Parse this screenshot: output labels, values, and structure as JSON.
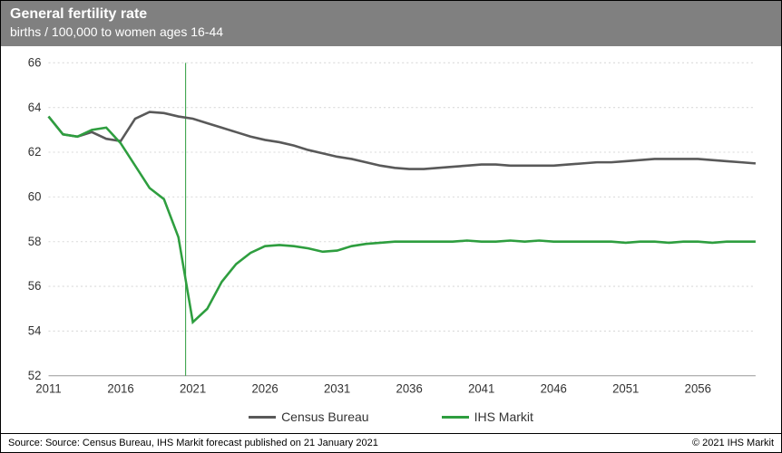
{
  "header": {
    "title": "General fertility rate",
    "subtitle": "births / 100,000 to women ages 16-44"
  },
  "chart": {
    "type": "line",
    "background_color": "#ffffff",
    "grid_color": "#d9d9d9",
    "axis_color": "#999999",
    "tick_fontsize": 13,
    "x": {
      "min": 2011,
      "max": 2060,
      "tick_step": 5,
      "tick_labels": [
        "2011",
        "2016",
        "2021",
        "2026",
        "2031",
        "2036",
        "2041",
        "2046",
        "2051",
        "2056"
      ]
    },
    "y": {
      "min": 52,
      "max": 66,
      "tick_step": 2,
      "tick_labels": [
        "52",
        "54",
        "56",
        "58",
        "60",
        "62",
        "64",
        "66"
      ]
    },
    "vertical_marker": {
      "x": 2020.5,
      "color": "#2e9e3f",
      "width": 1
    },
    "series": [
      {
        "name": "Census Bureau",
        "color": "#595959",
        "line_width": 2.5,
        "points": [
          [
            2011,
            63.6
          ],
          [
            2012,
            62.8
          ],
          [
            2013,
            62.7
          ],
          [
            2014,
            62.9
          ],
          [
            2015,
            62.6
          ],
          [
            2016,
            62.5
          ],
          [
            2017,
            63.5
          ],
          [
            2018,
            63.8
          ],
          [
            2019,
            63.75
          ],
          [
            2020,
            63.6
          ],
          [
            2021,
            63.5
          ],
          [
            2022,
            63.3
          ],
          [
            2023,
            63.1
          ],
          [
            2024,
            62.9
          ],
          [
            2025,
            62.7
          ],
          [
            2026,
            62.55
          ],
          [
            2027,
            62.45
          ],
          [
            2028,
            62.3
          ],
          [
            2029,
            62.1
          ],
          [
            2030,
            61.95
          ],
          [
            2031,
            61.8
          ],
          [
            2032,
            61.7
          ],
          [
            2033,
            61.55
          ],
          [
            2034,
            61.4
          ],
          [
            2035,
            61.3
          ],
          [
            2036,
            61.25
          ],
          [
            2037,
            61.25
          ],
          [
            2038,
            61.3
          ],
          [
            2039,
            61.35
          ],
          [
            2040,
            61.4
          ],
          [
            2041,
            61.45
          ],
          [
            2042,
            61.45
          ],
          [
            2043,
            61.4
          ],
          [
            2044,
            61.4
          ],
          [
            2045,
            61.4
          ],
          [
            2046,
            61.4
          ],
          [
            2047,
            61.45
          ],
          [
            2048,
            61.5
          ],
          [
            2049,
            61.55
          ],
          [
            2050,
            61.55
          ],
          [
            2051,
            61.6
          ],
          [
            2052,
            61.65
          ],
          [
            2053,
            61.7
          ],
          [
            2054,
            61.7
          ],
          [
            2055,
            61.7
          ],
          [
            2056,
            61.7
          ],
          [
            2057,
            61.65
          ],
          [
            2058,
            61.6
          ],
          [
            2059,
            61.55
          ],
          [
            2060,
            61.5
          ]
        ]
      },
      {
        "name": "IHS Markit",
        "color": "#2e9e3f",
        "line_width": 2.5,
        "points": [
          [
            2011,
            63.6
          ],
          [
            2012,
            62.8
          ],
          [
            2013,
            62.7
          ],
          [
            2014,
            63.0
          ],
          [
            2015,
            63.1
          ],
          [
            2016,
            62.4
          ],
          [
            2017,
            61.4
          ],
          [
            2018,
            60.4
          ],
          [
            2019,
            59.9
          ],
          [
            2020,
            58.2
          ],
          [
            2021,
            54.4
          ],
          [
            2022,
            55.0
          ],
          [
            2023,
            56.2
          ],
          [
            2024,
            57.0
          ],
          [
            2025,
            57.5
          ],
          [
            2026,
            57.8
          ],
          [
            2027,
            57.85
          ],
          [
            2028,
            57.8
          ],
          [
            2029,
            57.7
          ],
          [
            2030,
            57.55
          ],
          [
            2031,
            57.6
          ],
          [
            2032,
            57.8
          ],
          [
            2033,
            57.9
          ],
          [
            2034,
            57.95
          ],
          [
            2035,
            58.0
          ],
          [
            2036,
            58.0
          ],
          [
            2037,
            58.0
          ],
          [
            2038,
            58.0
          ],
          [
            2039,
            58.0
          ],
          [
            2040,
            58.05
          ],
          [
            2041,
            58.0
          ],
          [
            2042,
            58.0
          ],
          [
            2043,
            58.05
          ],
          [
            2044,
            58.0
          ],
          [
            2045,
            58.05
          ],
          [
            2046,
            58.0
          ],
          [
            2047,
            58.0
          ],
          [
            2048,
            58.0
          ],
          [
            2049,
            58.0
          ],
          [
            2050,
            58.0
          ],
          [
            2051,
            57.95
          ],
          [
            2052,
            58.0
          ],
          [
            2053,
            58.0
          ],
          [
            2054,
            57.95
          ],
          [
            2055,
            58.0
          ],
          [
            2056,
            58.0
          ],
          [
            2057,
            57.95
          ],
          [
            2058,
            58.0
          ],
          [
            2059,
            58.0
          ],
          [
            2060,
            58.0
          ]
        ]
      }
    ]
  },
  "legend": {
    "items": [
      {
        "label": "Census Bureau",
        "color": "#595959"
      },
      {
        "label": "IHS Markit",
        "color": "#2e9e3f"
      }
    ]
  },
  "footer": {
    "source": "Source: Source: Census Bureau, IHS Markit forecast published on 21 January 2021",
    "copyright": "© 2021 IHS Markit"
  }
}
